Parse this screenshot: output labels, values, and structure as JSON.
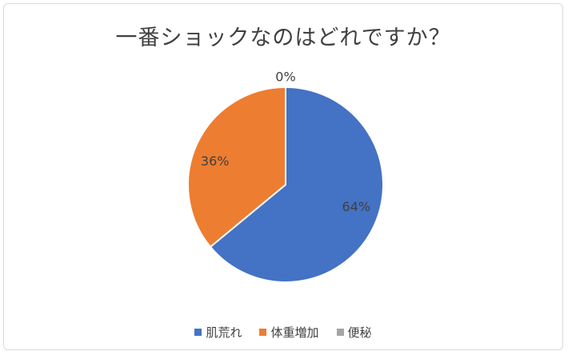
{
  "chart_data": {
    "type": "pie",
    "title": "一番ショックなのはどれですか？",
    "categories": [
      "肌荒れ",
      "体重増加",
      "便秘"
    ],
    "values": [
      64,
      36,
      0
    ],
    "data_labels": [
      "64%",
      "36%",
      "0%"
    ],
    "colors": [
      "#4472c4",
      "#ed7d31",
      "#a5a5a5"
    ],
    "legend_position": "bottom"
  }
}
